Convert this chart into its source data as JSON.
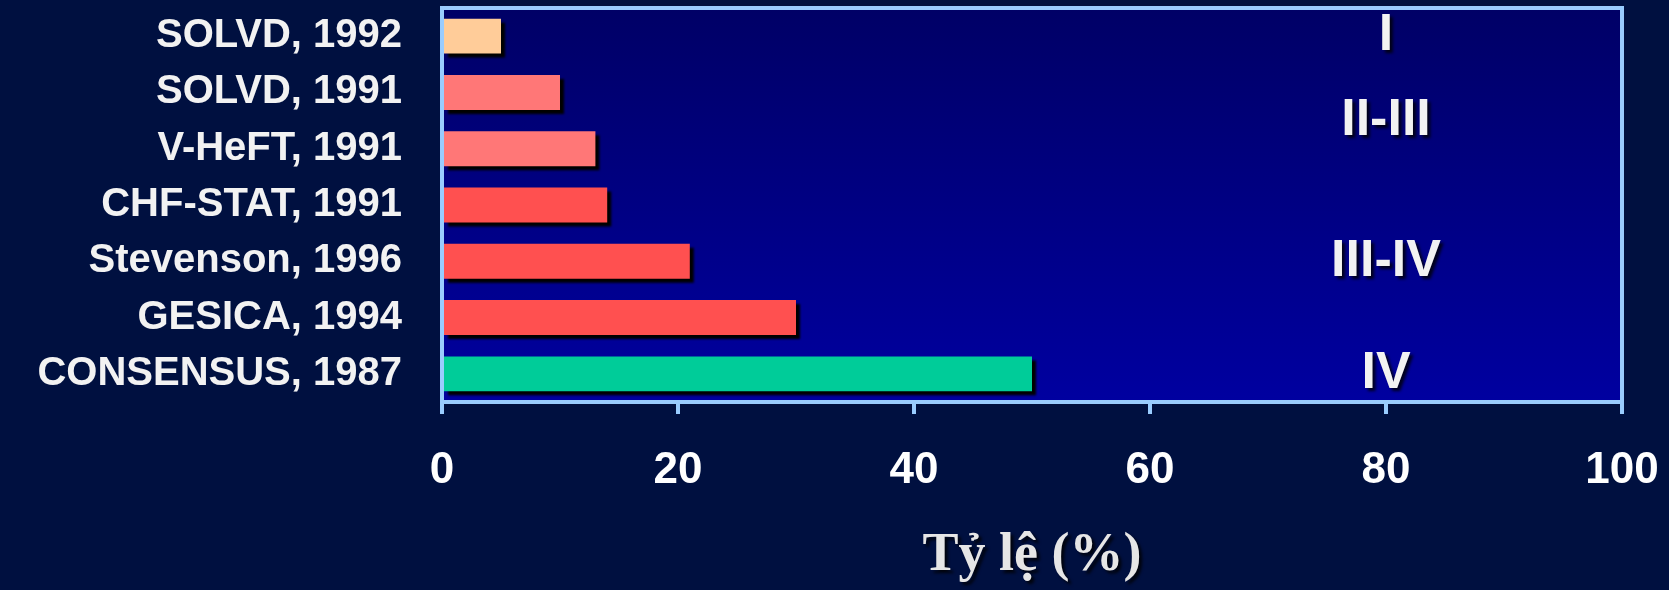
{
  "chart_data": {
    "type": "bar",
    "orientation": "horizontal",
    "categories": [
      "SOLVD, 1992",
      "SOLVD, 1991",
      "V-HeFT, 1991",
      "CHF-STAT, 1991",
      "Stevenson, 1996",
      "GESICA, 1994",
      "CONSENSUS, 1987"
    ],
    "values": [
      5,
      10,
      13,
      14,
      21,
      30,
      50
    ],
    "colors": [
      "#ffcc99",
      "#ff7777",
      "#ff7777",
      "#ff5050",
      "#ff5050",
      "#ff5050",
      "#00cc99"
    ],
    "xlabel": "Tỷ lệ (%)",
    "xlim": [
      0,
      100
    ],
    "xticks": [
      0,
      20,
      40,
      60,
      80,
      100
    ],
    "annotations": [
      "I",
      "II-III",
      "III-IV",
      "IV"
    ],
    "grid": false,
    "legend": false
  }
}
